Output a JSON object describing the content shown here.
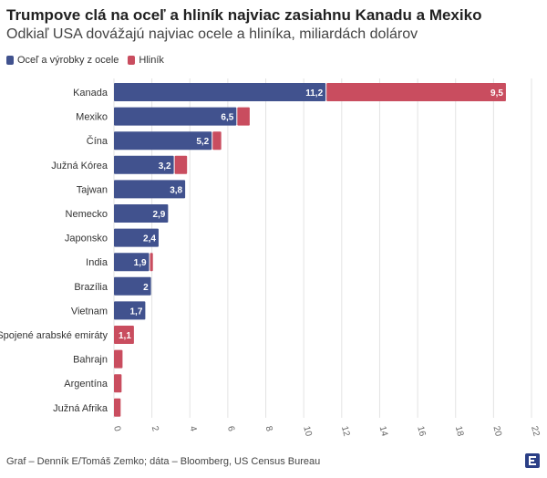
{
  "header": {
    "title": "Trumpove clá na oceľ a hliník najviac zasiahnu Kanadu a Mexiko",
    "subtitle": "Odkiaľ USA dovážajú najviac ocele a hliníka, miliardách dolárov"
  },
  "footer": {
    "source": "Graf – Denník E/Tomáš Zemko; dáta – Bloomberg, US Census Bureau"
  },
  "colors": {
    "steel": "#41528e",
    "aluminium": "#c94d5f"
  },
  "chart_data": {
    "type": "bar",
    "orientation": "horizontal",
    "stacked": true,
    "categories": [
      "Kanada",
      "Mexiko",
      "Čína",
      "Južná Kórea",
      "Tajwan",
      "Nemecko",
      "Japonsko",
      "India",
      "Brazília",
      "Vietnam",
      "Spojené arabské emiráty",
      "Bahrajn",
      "Argentína",
      "Južná Afrika"
    ],
    "series": [
      {
        "name": "Oceľ a výrobky z ocele",
        "values": [
          11.2,
          6.5,
          5.2,
          3.2,
          3.8,
          2.9,
          2.4,
          1.9,
          2,
          1.7,
          0,
          0,
          0,
          0
        ],
        "labels": [
          "11,2",
          "6,5",
          "5,2",
          "3,2",
          "3,8",
          "2,9",
          "2,4",
          "1,9",
          "2",
          "1,7",
          "",
          "",
          "",
          ""
        ]
      },
      {
        "name": "Hliník",
        "values": [
          9.5,
          0.7,
          0.5,
          0.7,
          0,
          0,
          0,
          0.2,
          0,
          0,
          1.1,
          0.5,
          0.45,
          0.4
        ],
        "labels": [
          "9,5",
          "",
          "",
          "",
          "",
          "",
          "",
          "",
          "",
          "",
          "1,1",
          "",
          "",
          ""
        ]
      }
    ],
    "xlim": [
      0,
      22
    ],
    "xticks": [
      0,
      2,
      4,
      6,
      8,
      10,
      12,
      14,
      16,
      18,
      20,
      22
    ],
    "grid": "vertical",
    "legend": "top-left"
  }
}
